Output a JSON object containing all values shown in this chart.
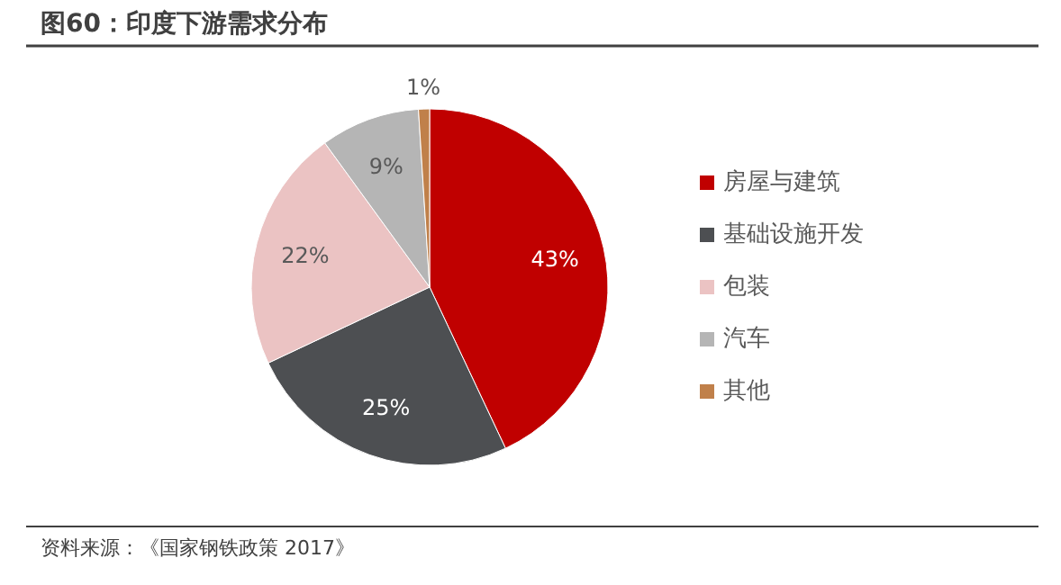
{
  "chart_data": {
    "type": "pie",
    "title": "图60：印度下游需求分布",
    "categories": [
      "房屋与建筑",
      "基础设施开发",
      "包装",
      "汽车",
      "其他"
    ],
    "values": [
      43,
      25,
      22,
      9,
      1
    ],
    "colors": [
      "#c00000",
      "#4d4f52",
      "#ebc3c3",
      "#b5b5b5",
      "#c0804a"
    ],
    "value_labels": [
      "43%",
      "25%",
      "22%",
      "9%",
      "1%"
    ],
    "legend": "right",
    "annotations": [
      "资料来源：《国家钢铁政策 2017》"
    ]
  }
}
